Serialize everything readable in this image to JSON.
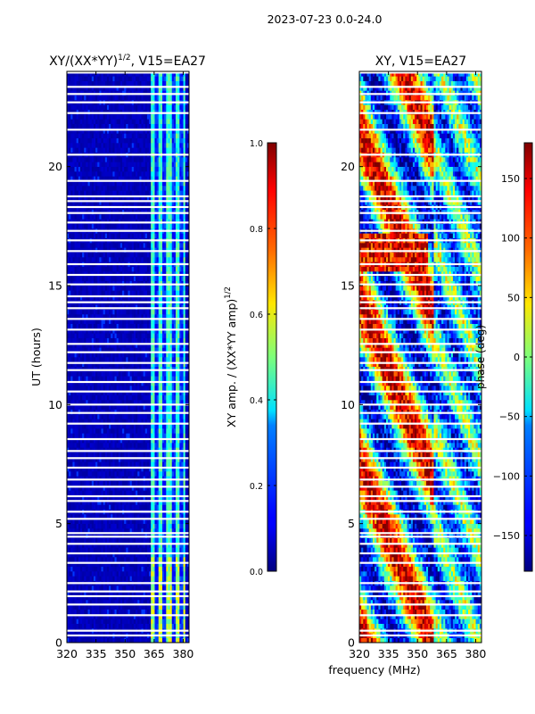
{
  "figure_title": "2023-07-23 0.0-24.0",
  "shared_xlabel": "frequency (MHz)",
  "chart_data": [
    {
      "type": "heatmap",
      "title": "XY/(XX*YY)",
      "title_exponent": "1/2",
      "title_suffix": ", V15=EA27",
      "xlabel": "",
      "ylabel": "UT (hours)",
      "xlim": [
        320,
        383
      ],
      "ylim": [
        0,
        24
      ],
      "xticks": [
        320,
        335,
        350,
        365,
        380
      ],
      "yticks": [
        0,
        5,
        10,
        15,
        20
      ],
      "colormap": "jet",
      "colorbar": {
        "label": "XY amp. / (XX*YY amp)",
        "label_exponent": "1/2",
        "range": [
          0.0,
          1.0
        ],
        "ticks": [
          "0.0",
          "0.2",
          "0.4",
          "0.6",
          "0.8",
          "1.0"
        ],
        "tick_values": [
          0.0,
          0.2,
          0.4,
          0.6,
          0.8,
          1.0
        ]
      }
    },
    {
      "type": "heatmap",
      "title": "XY, V15=EA27",
      "xlabel": "",
      "ylabel": "",
      "xlim": [
        320,
        383
      ],
      "ylim": [
        0,
        24
      ],
      "xticks": [
        320,
        335,
        350,
        365,
        380
      ],
      "yticks": [
        0,
        5,
        10,
        15,
        20
      ],
      "colormap": "jet",
      "colorbar": {
        "label": "phase (deg)",
        "range": [
          -180,
          180
        ],
        "ticks": [
          "−150",
          "−100",
          "−50",
          "0",
          "50",
          "100",
          "150"
        ],
        "tick_values": [
          -150,
          -100,
          -50,
          0,
          50,
          100,
          150
        ]
      }
    }
  ],
  "flagged_hours": [
    0.3,
    0.5,
    1.15,
    1.6,
    1.95,
    2.15,
    2.5,
    3.35,
    3.75,
    4.15,
    4.45,
    4.6,
    5.2,
    5.5,
    5.95,
    6.15,
    6.55,
    6.85,
    7.35,
    7.75,
    8.05,
    8.55,
    9.2,
    9.65,
    10.0,
    10.55,
    10.95,
    11.45,
    11.75,
    12.2,
    12.55,
    13.15,
    13.6,
    14.05,
    14.3,
    14.55,
    15.05,
    15.45,
    15.9,
    16.45,
    16.9,
    17.3,
    17.65,
    18.05,
    18.3,
    18.55,
    18.75,
    19.4,
    20.5,
    21.55,
    22.25,
    22.7,
    23.05,
    23.35,
    23.95
  ]
}
